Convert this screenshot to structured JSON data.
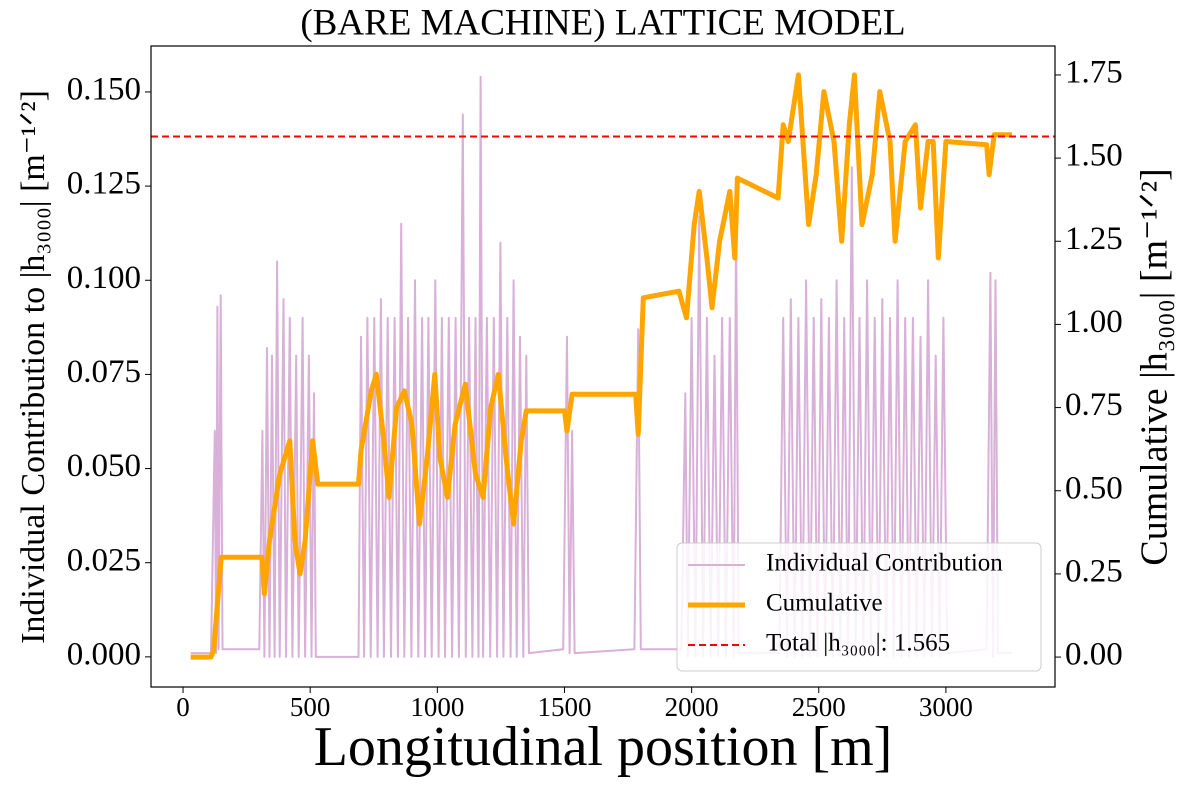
{
  "chart_data": {
    "type": "line",
    "title": "(BARE MACHINE) LATTICE MODEL",
    "x_label": "Longitudinal position [m]",
    "y_label": "Individual Contribution to |h₃₀₀₀| [m⁻¹ᐟ²]",
    "y2_label": "Cumulative |h₃₀₀₀| [m⁻¹ᐟ²]",
    "xlim": [
      -126,
      3429
    ],
    "xticks": [
      0,
      500,
      1000,
      1500,
      2000,
      2500,
      3000
    ],
    "ylim": [
      -0.008,
      0.1622
    ],
    "yticks": [
      {
        "value": 0,
        "label": "0.000"
      },
      0.025,
      {
        "value": 0.05,
        "label": "0.050"
      },
      0.075,
      {
        "value": 0.1,
        "label": "0.100"
      },
      0.125,
      {
        "value": 0.15,
        "label": "0.150"
      }
    ],
    "y2lim": [
      -0.09,
      1.837
    ],
    "y2ticks": [
      {
        "value": 0,
        "label": "0.00"
      },
      0.25,
      {
        "value": 0.5,
        "label": "0.50"
      },
      0.75,
      {
        "value": 1,
        "label": "1.00"
      },
      1.25,
      {
        "value": 1.5,
        "label": "1.50"
      },
      1.75
    ],
    "legend": "lower right",
    "series": [
      {
        "name": "Individual Contribution",
        "color": "#d8b0d8",
        "width": 2,
        "x": [
          30,
          110,
          125,
          130,
          135,
          140,
          148,
          155,
          300,
          312,
          320,
          330,
          340,
          350,
          360,
          370,
          380,
          395,
          405,
          420,
          430,
          445,
          455,
          470,
          480,
          495,
          505,
          515,
          522,
          690,
          700,
          712,
          725,
          738,
          752,
          765,
          778,
          790,
          805,
          818,
          832,
          845,
          858,
          870,
          885,
          898,
          912,
          925,
          940,
          952,
          965,
          978,
          992,
          1005,
          1018,
          1030,
          1045,
          1058,
          1072,
          1085,
          1100,
          1112,
          1125,
          1138,
          1150,
          1162,
          1170,
          1180,
          1195,
          1208,
          1222,
          1235,
          1248,
          1260,
          1275,
          1288,
          1300,
          1312,
          1325,
          1338,
          1350,
          1360,
          1495,
          1510,
          1520,
          1530,
          1540,
          1775,
          1790,
          1800,
          1960,
          1975,
          1985,
          2000,
          2015,
          2030,
          2045,
          2060,
          2075,
          2090,
          2105,
          2120,
          2135,
          2150,
          2165,
          2175,
          2185,
          2345,
          2360,
          2375,
          2390,
          2405,
          2420,
          2435,
          2450,
          2465,
          2480,
          2495,
          2510,
          2525,
          2540,
          2555,
          2570,
          2585,
          2600,
          2615,
          2630,
          2645,
          2660,
          2675,
          2690,
          2705,
          2720,
          2735,
          2750,
          2765,
          2780,
          2795,
          2810,
          2825,
          2840,
          2855,
          2870,
          2885,
          2900,
          2915,
          2930,
          2945,
          2960,
          2975,
          2990,
          3005,
          3160,
          3175,
          3185,
          3195,
          3205,
          3260
        ],
        "values": [
          0.001,
          0.001,
          0.06,
          0.001,
          0.093,
          0.002,
          0.096,
          0.002,
          0.002,
          0.06,
          0,
          0.082,
          0,
          0.08,
          0,
          0.105,
          0,
          0.095,
          0,
          0.09,
          0,
          0.08,
          0,
          0.09,
          0,
          0.08,
          0,
          0.07,
          0,
          0,
          0.085,
          0,
          0.09,
          0,
          0.09,
          0,
          0.095,
          0,
          0.09,
          0,
          0.09,
          0,
          0.115,
          0,
          0.09,
          0,
          0.1,
          0,
          0.09,
          0,
          0.09,
          0,
          0.1,
          0,
          0.09,
          0,
          0.09,
          0,
          0.09,
          0,
          0.144,
          0,
          0.09,
          0,
          0.09,
          0,
          0.154,
          0,
          0.09,
          0,
          0.09,
          0,
          0.11,
          0,
          0.09,
          0,
          0.1,
          0,
          0.085,
          0,
          0.08,
          0.001,
          0.002,
          0.085,
          0.001,
          0.06,
          0.001,
          0.002,
          0.087,
          0.002,
          0.002,
          0.07,
          0,
          0.09,
          0,
          0.117,
          0,
          0.09,
          0,
          0.08,
          0,
          0.09,
          0,
          0.09,
          0,
          0.115,
          0.001,
          0.001,
          0.09,
          0,
          0.095,
          0,
          0.09,
          0,
          0.1,
          0,
          0.09,
          0,
          0.095,
          0,
          0.09,
          0,
          0.1,
          0,
          0.09,
          0,
          0.13,
          0,
          0.09,
          0,
          0.1,
          0,
          0.09,
          0,
          0.095,
          0,
          0.09,
          0,
          0.1,
          0,
          0.09,
          0,
          0.09,
          0,
          0.085,
          0,
          0.1,
          0,
          0.08,
          0,
          0.09,
          0.001,
          0.002,
          0.102,
          0,
          0.1,
          0.001,
          0.001
        ]
      },
      {
        "name": "Cumulative",
        "color": "#ffa500",
        "width": 5,
        "axis": "y2",
        "x": [
          30,
          110,
          120,
          150,
          310,
          320,
          340,
          380,
          400,
          420,
          440,
          460,
          480,
          500,
          510,
          530,
          690,
          700,
          740,
          760,
          790,
          810,
          840,
          870,
          900,
          930,
          960,
          990,
          1010,
          1040,
          1070,
          1110,
          1150,
          1180,
          1210,
          1240,
          1270,
          1300,
          1330,
          1350,
          1500,
          1510,
          1530,
          1780,
          1790,
          1810,
          1950,
          1980,
          2010,
          2030,
          2060,
          2080,
          2110,
          2150,
          2170,
          2180,
          2340,
          2360,
          2380,
          2420,
          2460,
          2490,
          2520,
          2560,
          2590,
          2620,
          2640,
          2670,
          2710,
          2740,
          2780,
          2800,
          2840,
          2880,
          2900,
          2930,
          2950,
          2970,
          3000,
          3160,
          3170,
          3190,
          3260
        ],
        "values": [
          0,
          0,
          0.02,
          0.3,
          0.3,
          0.19,
          0.35,
          0.55,
          0.6,
          0.65,
          0.35,
          0.25,
          0.35,
          0.55,
          0.65,
          0.52,
          0.52,
          0.62,
          0.8,
          0.85,
          0.65,
          0.48,
          0.75,
          0.8,
          0.7,
          0.4,
          0.6,
          0.85,
          0.6,
          0.48,
          0.7,
          0.82,
          0.55,
          0.48,
          0.75,
          0.85,
          0.6,
          0.4,
          0.65,
          0.74,
          0.74,
          0.68,
          0.79,
          0.79,
          0.67,
          1.08,
          1.1,
          1.02,
          1.3,
          1.4,
          1.2,
          1.05,
          1.25,
          1.4,
          1.2,
          1.44,
          1.38,
          1.6,
          1.55,
          1.75,
          1.3,
          1.45,
          1.7,
          1.55,
          1.25,
          1.6,
          1.75,
          1.3,
          1.45,
          1.7,
          1.55,
          1.25,
          1.55,
          1.6,
          1.35,
          1.55,
          1.55,
          1.2,
          1.55,
          1.54,
          1.45,
          1.57,
          1.57
        ]
      }
    ],
    "hline": {
      "name": "Total |h₃₀₀₀|: 1.565",
      "color": "#ff0000",
      "value": 1.565,
      "axis": "y2"
    }
  }
}
